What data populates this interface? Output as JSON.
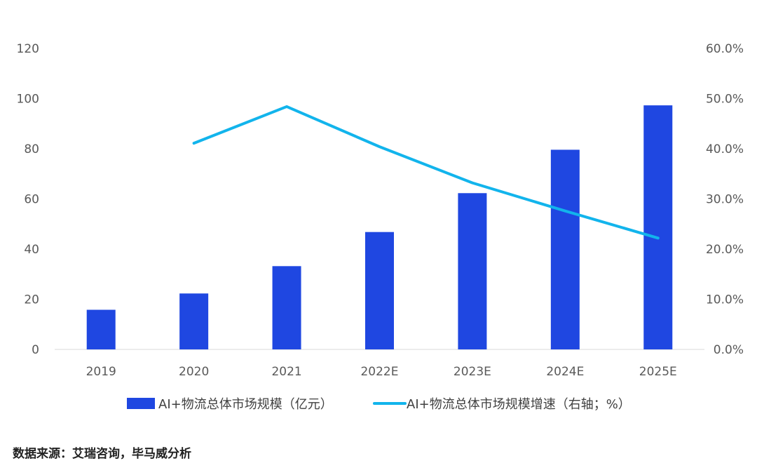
{
  "chart_data": {
    "type": "bar",
    "categories": [
      "2019",
      "2020",
      "2021",
      "2022E",
      "2023E",
      "2024E",
      "2025E"
    ],
    "series": [
      {
        "name": "AI+物流总体市场规模（亿元）",
        "type": "bar",
        "axis": "left",
        "color": "#1f47e1",
        "values": [
          15.8,
          22.3,
          33.2,
          46.8,
          62.3,
          79.6,
          97.3
        ]
      },
      {
        "name": "AI+物流总体市场规模增速（右轴；%）",
        "type": "line",
        "axis": "right",
        "color": "#12b4ec",
        "values": [
          null,
          41.1,
          48.4,
          40.4,
          33.2,
          27.6,
          22.2
        ]
      }
    ],
    "yleft": {
      "min": 0,
      "max": 120,
      "ticks": [
        "0",
        "20",
        "40",
        "60",
        "80",
        "100",
        "120"
      ]
    },
    "yright": {
      "min": 0,
      "max": 60,
      "ticks": [
        "0.0%",
        "10.0%",
        "20.0%",
        "30.0%",
        "40.0%",
        "50.0%",
        "60.0%"
      ]
    },
    "grid": false,
    "legend_position": "bottom"
  },
  "legend": {
    "bar_label": "AI+物流总体市场规模（亿元）",
    "line_label": "AI+物流总体市场规模增速（右轴；%）"
  },
  "source": "数据来源：艾瑞咨询，毕马威分析"
}
